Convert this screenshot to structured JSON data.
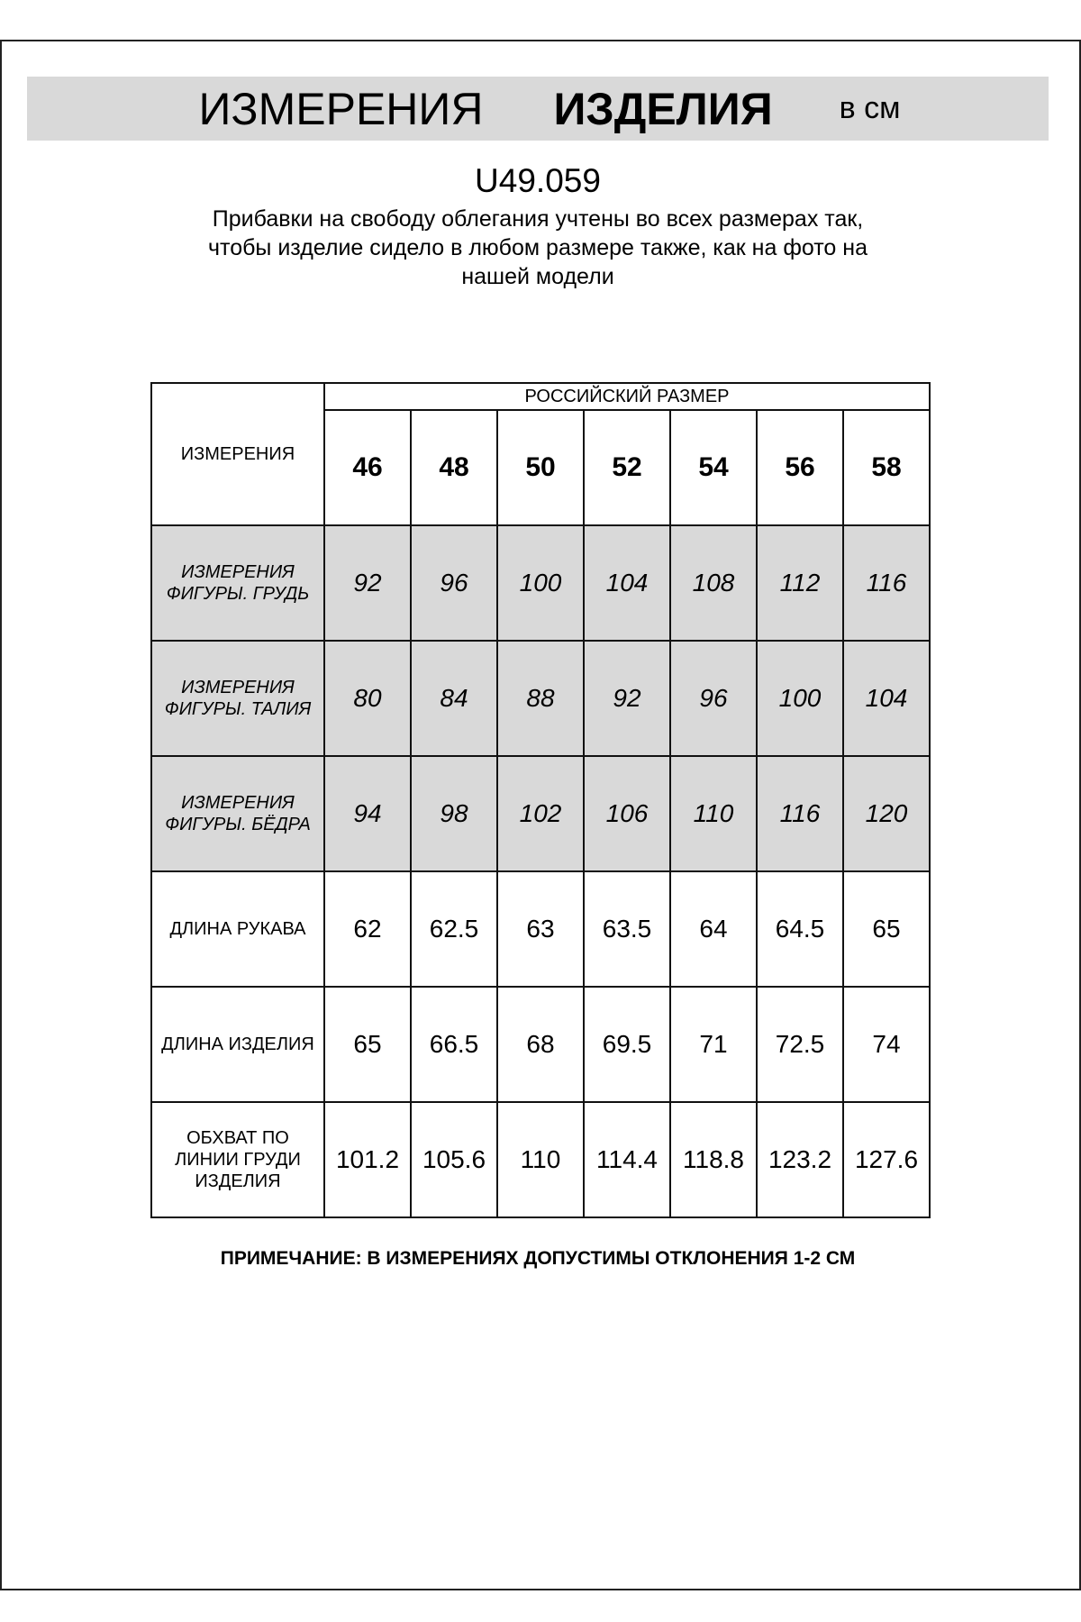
{
  "header": {
    "title_part1": "ИЗМЕРЕНИЯ",
    "title_part2": "ИЗДЕЛИЯ",
    "title_unit": "в см",
    "background_color": "#d9d9d9"
  },
  "product_code": "U49.059",
  "description_lines": [
    "Прибавки на свободу облегания учтены во всех размерах так,",
    "чтобы изделие сидело в любом размере также, как на фото на",
    "нашей модели"
  ],
  "table": {
    "corner_label": "ИЗМЕРЕНИЯ",
    "group_header": "РОССИЙСКИЙ РАЗМЕР",
    "sizes": [
      "46",
      "48",
      "50",
      "52",
      "54",
      "56",
      "58"
    ],
    "rows": [
      {
        "label": [
          "ИЗМЕРЕНИЯ",
          "ФИГУРЫ. ГРУДЬ"
        ],
        "shaded": true,
        "values": [
          "92",
          "96",
          "100",
          "104",
          "108",
          "112",
          "116"
        ]
      },
      {
        "label": [
          "ИЗМЕРЕНИЯ",
          "ФИГУРЫ. ТАЛИЯ"
        ],
        "shaded": true,
        "values": [
          "80",
          "84",
          "88",
          "92",
          "96",
          "100",
          "104"
        ]
      },
      {
        "label": [
          "ИЗМЕРЕНИЯ",
          "ФИГУРЫ. БЁДРА"
        ],
        "shaded": true,
        "values": [
          "94",
          "98",
          "102",
          "106",
          "110",
          "116",
          "120"
        ]
      },
      {
        "label": [
          "ДЛИНА РУКАВА"
        ],
        "shaded": false,
        "values": [
          "62",
          "62.5",
          "63",
          "63.5",
          "64",
          "64.5",
          "65"
        ]
      },
      {
        "label": [
          "ДЛИНА ИЗДЕЛИЯ"
        ],
        "shaded": false,
        "values": [
          "65",
          "66.5",
          "68",
          "69.5",
          "71",
          "72.5",
          "74"
        ]
      },
      {
        "label": [
          "ОБХВАТ ПО",
          "ЛИНИИ ГРУДИ",
          "ИЗДЕЛИЯ"
        ],
        "shaded": false,
        "values": [
          "101.2",
          "105.6",
          "110",
          "114.4",
          "118.8",
          "123.2",
          "127.6"
        ]
      }
    ]
  },
  "note": "ПРИМЕЧАНИЕ: В ИЗМЕРЕНИЯХ ДОПУСТИМЫ ОТКЛОНЕНИЯ 1-2 СМ"
}
